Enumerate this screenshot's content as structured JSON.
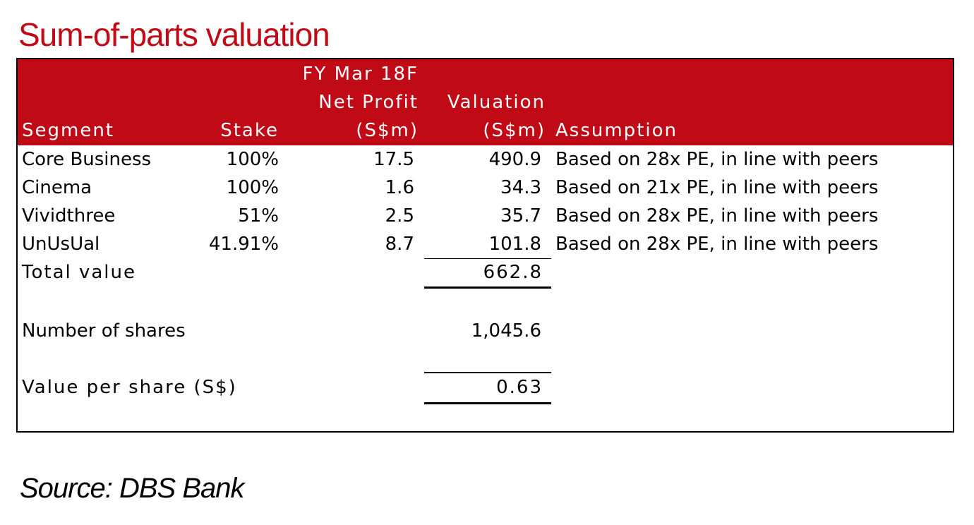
{
  "title": "Sum-of-parts valuation",
  "colors": {
    "accent": "#c00a16",
    "header_text": "#ffffff",
    "body_text": "#000000"
  },
  "header": {
    "segment": "Segment",
    "stake": "Stake",
    "net_profit_line1": "FY Mar 18F",
    "net_profit_line2": "Net Profit",
    "net_profit_line3": "(S$m)",
    "valuation_line1": "Valuation",
    "valuation_line2": "(S$m)",
    "assumption": "Assumption"
  },
  "rows": [
    {
      "segment": "Core Business",
      "stake": "100%",
      "net_profit": "17.5",
      "valuation": "490.9",
      "assumption": "Based on 28x PE, in line with peers"
    },
    {
      "segment": "Cinema",
      "stake": "100%",
      "net_profit": "1.6",
      "valuation": "34.3",
      "assumption": "Based on 21x PE, in line with peers"
    },
    {
      "segment": "Vividthree",
      "stake": "51%",
      "net_profit": "2.5",
      "valuation": "35.7",
      "assumption": "Based on 28x PE, in line with peers"
    },
    {
      "segment": "UnUsUal",
      "stake": "41.91%",
      "net_profit": "8.7",
      "valuation": "101.8",
      "assumption": "Based on 28x PE, in line with peers"
    }
  ],
  "total": {
    "label": "Total value",
    "value": "662.8"
  },
  "shares": {
    "label": "Number of shares",
    "value": "1,045.6"
  },
  "per_share": {
    "label": "Value per share (S$)",
    "value": "0.63"
  },
  "source": "Source: DBS Bank"
}
